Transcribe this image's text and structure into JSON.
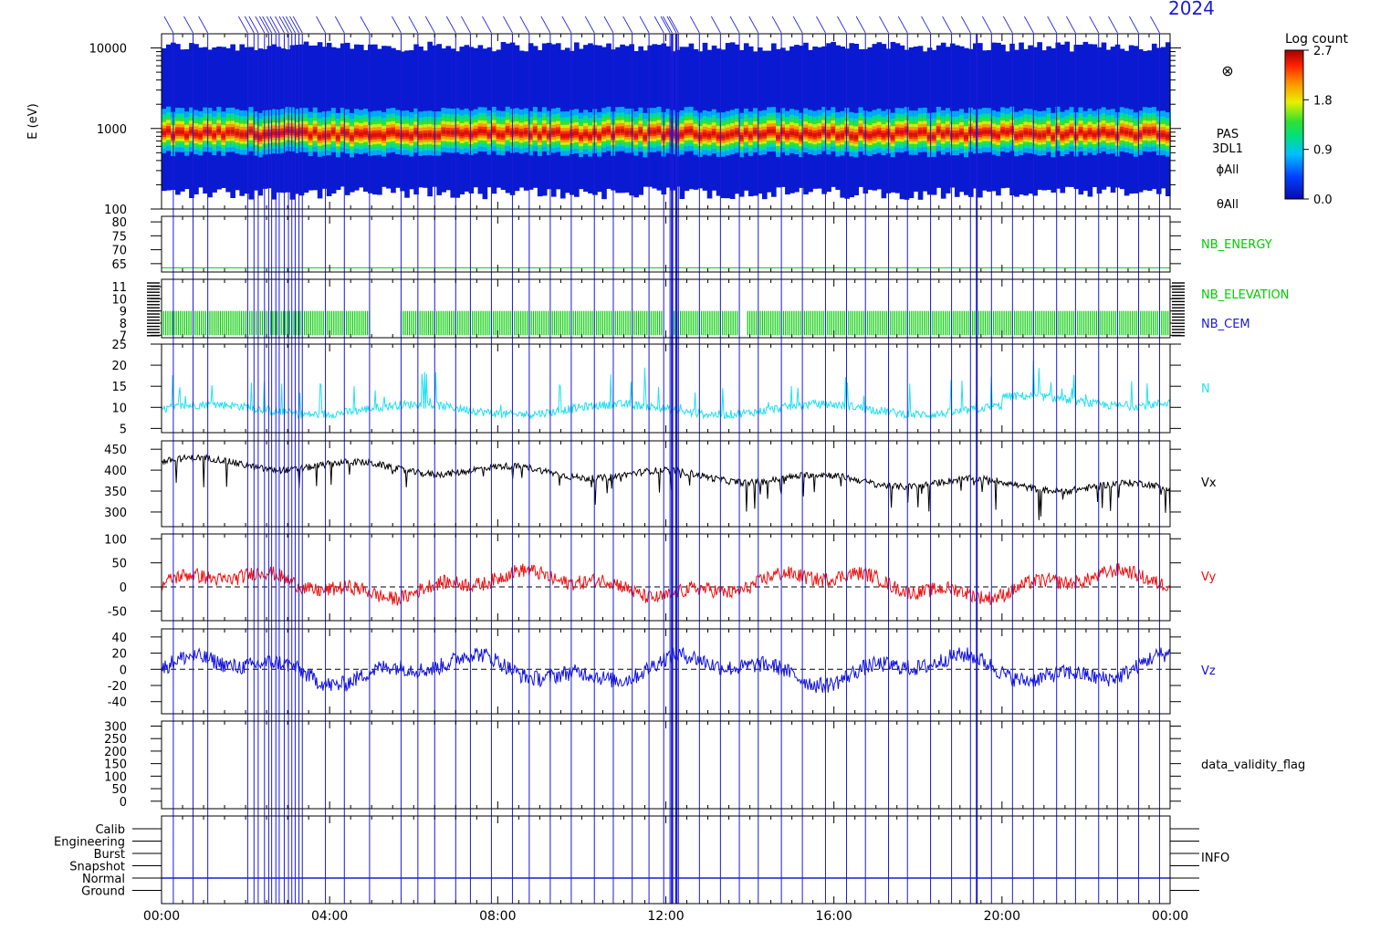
{
  "header": {
    "date_label": "2024"
  },
  "colorbar": {
    "title": "Log count",
    "ticks": [
      {
        "v": 2.7,
        "t": "2.7"
      },
      {
        "v": 1.8,
        "t": "1.8"
      },
      {
        "v": 0.9,
        "t": "0.9"
      },
      {
        "v": 0.0,
        "t": "0.0"
      }
    ],
    "range": [
      0,
      2.7
    ]
  },
  "chart_data": [
    {
      "type": "heatmap",
      "panel": "energy-spectrogram",
      "ylabel": "E (eV)",
      "yscale": "log",
      "ylim": [
        100,
        15000
      ],
      "yticks": [
        100,
        1000,
        10000
      ],
      "right_labels": [
        "PAS",
        "3DL1",
        "ϕAll",
        "θAll"
      ],
      "right_symbol": "⊗",
      "peak_energy_ev": 850,
      "low_cut_ev": 430,
      "high_cut_ev": 1800
    },
    {
      "type": "line",
      "panel": "nb-energy",
      "yticks": [
        65,
        70,
        75,
        80
      ],
      "ylim": [
        62,
        82
      ],
      "series": [
        {
          "name": "NB_ENERGY",
          "color": "#00cc00",
          "values_constant": 63.5
        }
      ]
    },
    {
      "type": "bar",
      "panel": "nb-elevation-cem",
      "yticks": [
        7,
        8,
        9,
        10,
        11
      ],
      "ylim": [
        6.8,
        11.6
      ],
      "series": [
        {
          "name": "NB_ELEVATION",
          "color": "#00cc00",
          "range": [
            7,
            9
          ],
          "gaps_hours": [
            [
              4.95,
              5.65
            ],
            [
              11.95,
              12.2
            ],
            [
              13.75,
              13.95
            ]
          ]
        },
        {
          "name": "NB_CEM",
          "color": "#1a1adb"
        }
      ]
    },
    {
      "type": "line",
      "panel": "density",
      "yticks": [
        5,
        10,
        15,
        20,
        25
      ],
      "ylim": [
        4,
        25
      ],
      "series": [
        {
          "name": "N",
          "color": "#22e0f0",
          "baseline": 9.5,
          "peaks_to": 18
        }
      ]
    },
    {
      "type": "line",
      "panel": "vx",
      "yticks": [
        300,
        350,
        400,
        450
      ],
      "ylim": [
        265,
        470
      ],
      "series": [
        {
          "name": "Vx",
          "color": "#000000",
          "trend_start": 420,
          "trend_end": 355
        }
      ]
    },
    {
      "type": "line",
      "panel": "vy",
      "yticks": [
        -50,
        0,
        50,
        100
      ],
      "ylim": [
        -70,
        110
      ],
      "series": [
        {
          "name": "Vy",
          "color": "#ee1111",
          "mean": 5,
          "amplitude": 30
        }
      ]
    },
    {
      "type": "line",
      "panel": "vz",
      "yticks": [
        -40,
        -20,
        0,
        20,
        40
      ],
      "ylim": [
        -55,
        50
      ],
      "series": [
        {
          "name": "Vz",
          "color": "#1111dd",
          "mean": 0,
          "amplitude": 20
        }
      ]
    },
    {
      "type": "line",
      "panel": "validity",
      "yticks": [
        0,
        50,
        100,
        150,
        200,
        250,
        300
      ],
      "ylim": [
        -30,
        320
      ],
      "series": [
        {
          "name": "data_validity_flag",
          "color": "#000000"
        }
      ]
    },
    {
      "type": "table",
      "panel": "info",
      "categories": [
        "Calib",
        "Engineering",
        "Burst",
        "Snapshot",
        "Normal",
        "Ground"
      ],
      "label": "INFO",
      "active": "Normal"
    }
  ],
  "time_axis": {
    "range_hours": [
      0,
      24
    ],
    "tick_labels": [
      "00:00",
      "04:00",
      "08:00",
      "12:00",
      "16:00",
      "20:00",
      "00:00"
    ],
    "minor_step_hours": 0.5
  },
  "marker_lines_hours": [
    0.28,
    0.75,
    1.1,
    2.05,
    2.2,
    2.3,
    2.45,
    2.55,
    2.62,
    2.72,
    2.8,
    2.92,
    3.02,
    3.1,
    3.18,
    3.27,
    3.35,
    3.9,
    4.35,
    4.95,
    5.7,
    6.1,
    6.5,
    7.0,
    7.35,
    7.85,
    8.35,
    8.75,
    9.25,
    9.75,
    10.3,
    10.75,
    11.2,
    11.6,
    11.95,
    12.1,
    12.15,
    12.25,
    12.3,
    12.8,
    13.3,
    13.75,
    14.2,
    14.75,
    15.25,
    15.8,
    16.3,
    16.75,
    17.3,
    17.75,
    18.3,
    18.8,
    19.25,
    19.75,
    20.25,
    20.75,
    21.3,
    21.75,
    22.3,
    22.75,
    23.25,
    23.75
  ]
}
